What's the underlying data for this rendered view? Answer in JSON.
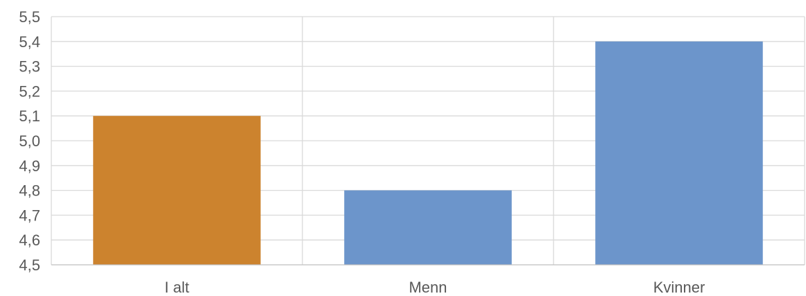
{
  "chart_data": {
    "type": "bar",
    "title": "",
    "xlabel": "",
    "ylabel": "",
    "categories": [
      "I alt",
      "Menn",
      "Kvinner"
    ],
    "values": [
      5.1,
      4.8,
      5.4
    ],
    "colors": [
      "#CC832E",
      "#6C95CB",
      "#6C95CB"
    ],
    "ylim": [
      4.5,
      5.5
    ],
    "y_ticks": [
      4.5,
      4.6,
      4.7,
      4.8,
      4.9,
      5.0,
      5.1,
      5.2,
      5.3,
      5.4,
      5.5
    ],
    "y_tick_labels": [
      "4,5",
      "4,6",
      "4,7",
      "4,8",
      "4,9",
      "5,0",
      "5,1",
      "5,2",
      "5,3",
      "5,4",
      "5,5"
    ],
    "grid": "horizontal-and-vertical",
    "legend": "none"
  }
}
